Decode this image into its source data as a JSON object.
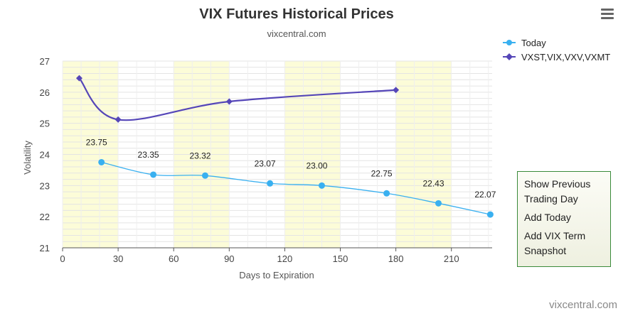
{
  "header": {
    "title": "VIX Futures Historical Prices",
    "subtitle": "vixcentral.com"
  },
  "credit": "vixcentral.com",
  "menu": {
    "icon": "hamburger-menu-icon",
    "items": [
      "Show Previous Trading Day",
      "Add Today",
      "Add VIX Term Snapshot"
    ]
  },
  "colors": {
    "today": "#39b0f0",
    "vxst": "#5546b8",
    "band": "#fcfcd8",
    "grid": "#e4e4e4",
    "menu_border": "#3a8a3a"
  },
  "chart_data": {
    "type": "line",
    "xlabel": "Days to Expiration",
    "ylabel": "Volatility",
    "xlim": [
      0,
      232
    ],
    "ylim": [
      21,
      27
    ],
    "x_ticks": [
      0,
      30,
      60,
      90,
      120,
      150,
      180,
      210
    ],
    "y_ticks": [
      21,
      22,
      23,
      24,
      25,
      26,
      27
    ],
    "grid": true,
    "alternating_bands": [
      [
        0,
        30
      ],
      [
        60,
        90
      ],
      [
        120,
        150
      ],
      [
        180,
        210
      ]
    ],
    "legend_position": "top-right",
    "series": [
      {
        "name": "Today",
        "marker": "circle",
        "x": [
          21,
          49,
          77,
          112,
          140,
          175,
          203,
          231
        ],
        "y": [
          23.75,
          23.35,
          23.32,
          23.07,
          23.0,
          22.75,
          22.43,
          22.07
        ],
        "labels": [
          "23.75",
          "23.35",
          "23.32",
          "23.07",
          "23.00",
          "22.75",
          "22.43",
          "22.07"
        ]
      },
      {
        "name": "VXST,VIX,VXV,VXMT",
        "marker": "diamond",
        "x": [
          9,
          30,
          90,
          180
        ],
        "y": [
          26.45,
          25.12,
          25.7,
          26.07
        ]
      }
    ]
  }
}
